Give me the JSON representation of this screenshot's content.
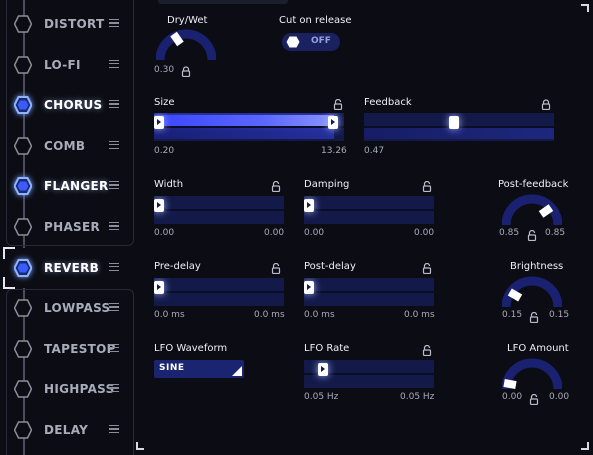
{
  "colors": {
    "accent": "#3a45ff",
    "track": "#131a4a",
    "active_hex": "#8fb4ff",
    "inactive_hex": "#8b8e9a",
    "background": "#0c0d14"
  },
  "sidebar": {
    "items": [
      {
        "label": "DISTORT",
        "active": false,
        "icon": "hexagon-outline-icon"
      },
      {
        "label": "LO-FI",
        "active": false,
        "icon": "hexagon-outline-icon"
      },
      {
        "label": "CHORUS",
        "active": true,
        "icon": "hexagon-glow-icon"
      },
      {
        "label": "COMB",
        "active": false,
        "icon": "hexagon-outline-icon"
      },
      {
        "label": "FLANGER",
        "active": true,
        "icon": "hexagon-glow-icon"
      },
      {
        "label": "PHASER",
        "active": false,
        "icon": "hexagon-outline-icon"
      },
      {
        "label": "REVERB",
        "active": true,
        "selected": true,
        "icon": "hexagon-glow-icon"
      },
      {
        "label": "LOWPASS",
        "active": false,
        "icon": "hexagon-outline-icon"
      },
      {
        "label": "TAPESTOP",
        "active": false,
        "icon": "hexagon-outline-icon"
      },
      {
        "label": "HIGHPASS",
        "active": false,
        "icon": "hexagon-outline-icon"
      },
      {
        "label": "DELAY",
        "active": false,
        "icon": "hexagon-outline-icon"
      }
    ]
  },
  "reverb": {
    "dry_wet": {
      "label": "Dry/Wet",
      "value": "0.30",
      "level": 0.3
    },
    "cut_on_release": {
      "label": "Cut on release",
      "state": "OFF"
    },
    "size": {
      "label": "Size",
      "min": "0.20",
      "max": "13.26",
      "level": 1.0
    },
    "feedback": {
      "label": "Feedback",
      "value": "0.47",
      "level": 0.47
    },
    "width": {
      "label": "Width",
      "min": "0.00",
      "max": "0.00",
      "level": 0
    },
    "damping": {
      "label": "Damping",
      "min": "0.00",
      "max": "0.00",
      "level": 0
    },
    "post_feedback": {
      "label": "Post-feedback",
      "min": "0.85",
      "max": "0.85",
      "level": 0.85
    },
    "pre_delay": {
      "label": "Pre-delay",
      "min": "0.0 ms",
      "max": "0.0 ms",
      "level": 0
    },
    "post_delay": {
      "label": "Post-delay",
      "min": "0.0 ms",
      "max": "0.0 ms",
      "level": 0
    },
    "brightness": {
      "label": "Brightness",
      "min": "0.15",
      "max": "0.15",
      "level": 0.15
    },
    "lfo_waveform": {
      "label": "LFO Waveform",
      "value": "SINE"
    },
    "lfo_rate": {
      "label": "LFO Rate",
      "min": "0.05 Hz",
      "max": "0.05 Hz",
      "level": 0.12
    },
    "lfo_amount": {
      "label": "LFO Amount",
      "min": "0.00",
      "max": "0.00",
      "level": 0.0
    }
  }
}
